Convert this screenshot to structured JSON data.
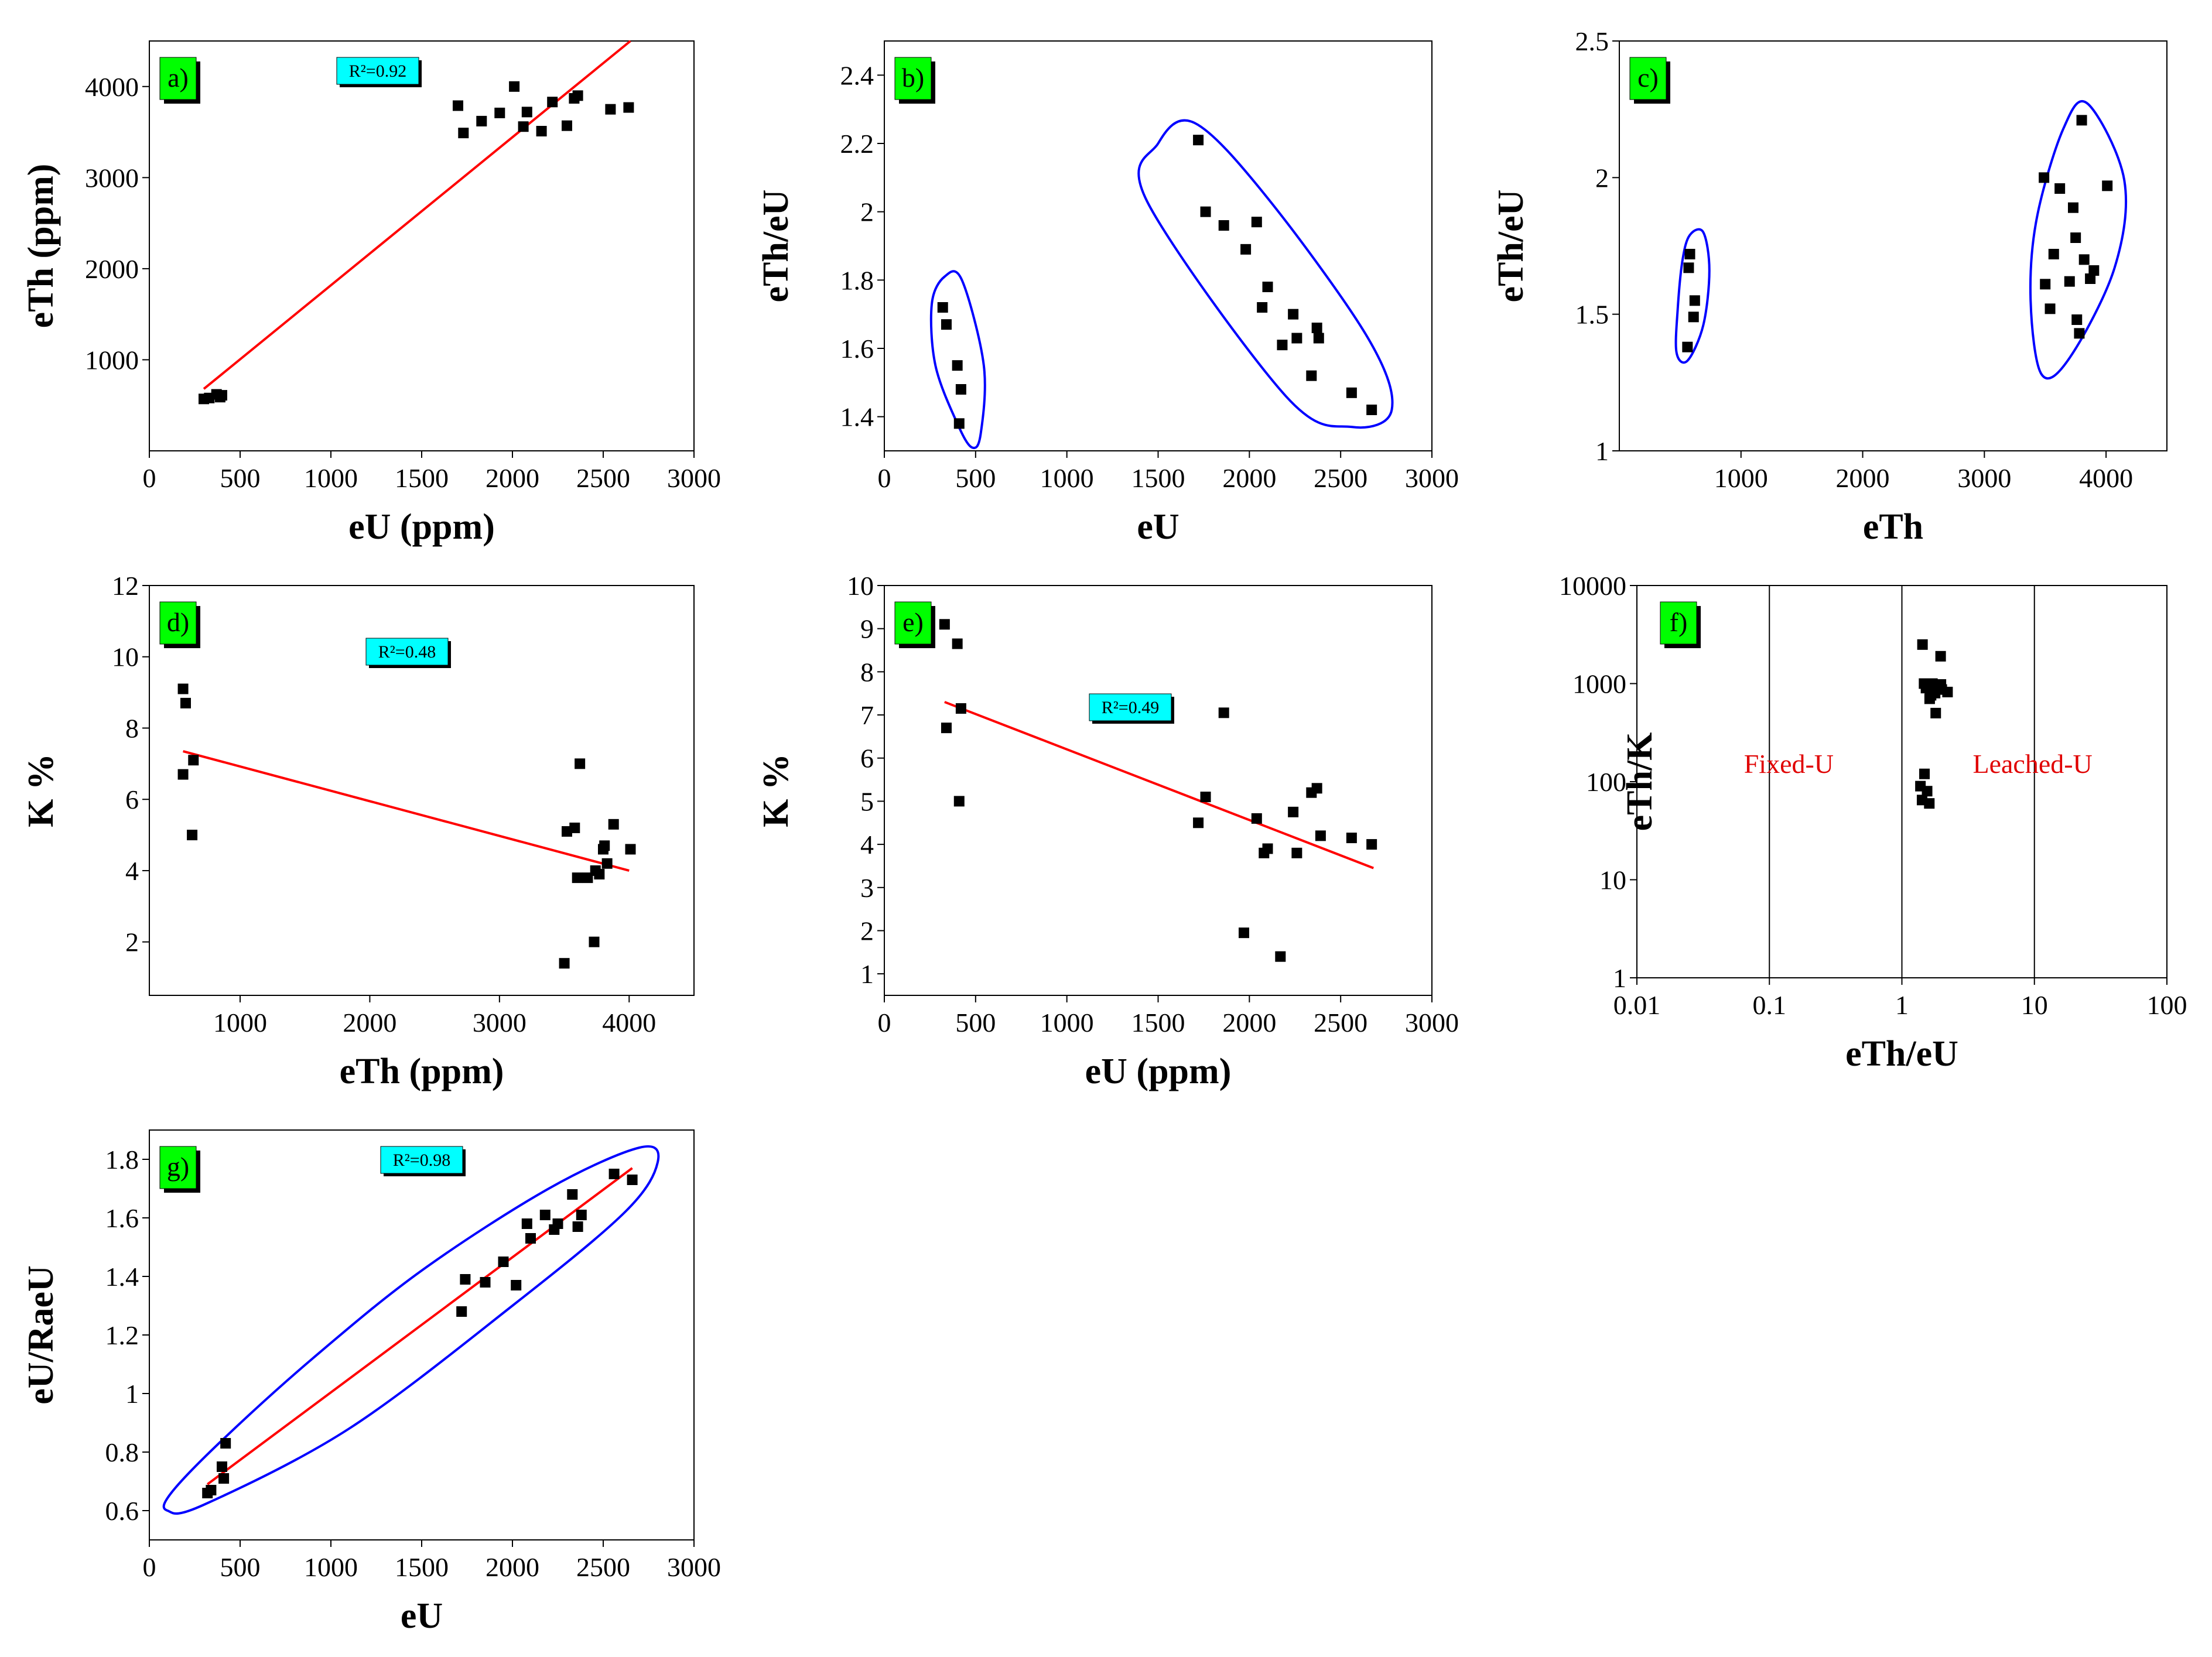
{
  "figure": {
    "colors": {
      "points": "#000000",
      "fit": "#ff0000",
      "ellipse": "#0000ff",
      "tag_bg": "#00ff00",
      "r2_bg": "#00ffff",
      "zone_text": "#e00000"
    }
  },
  "chart_data": [
    {
      "id": "a",
      "tag": "a)",
      "type": "scatter",
      "xlabel": "eU (ppm)",
      "ylabel": "eTh (ppm)",
      "xlim": [
        0,
        3000
      ],
      "ylim": [
        0,
        4500
      ],
      "xticks": [
        0,
        500,
        1000,
        1500,
        2000,
        2500,
        3000
      ],
      "yticks": [
        1000,
        2000,
        3000,
        4000
      ],
      "r2": "R²=0.92",
      "points": [
        [
          300,
          570
        ],
        [
          330,
          580
        ],
        [
          370,
          620
        ],
        [
          390,
          590
        ],
        [
          400,
          610
        ],
        [
          1700,
          3790
        ],
        [
          1730,
          3490
        ],
        [
          1830,
          3620
        ],
        [
          1930,
          3710
        ],
        [
          2010,
          4000
        ],
        [
          2060,
          3560
        ],
        [
          2080,
          3720
        ],
        [
          2160,
          3510
        ],
        [
          2220,
          3830
        ],
        [
          2300,
          3570
        ],
        [
          2340,
          3870
        ],
        [
          2360,
          3900
        ],
        [
          2540,
          3750
        ],
        [
          2640,
          3770
        ]
      ],
      "fit": [
        [
          300,
          680
        ],
        [
          2650,
          4500
        ]
      ],
      "ellipses": []
    },
    {
      "id": "b",
      "tag": "b)",
      "type": "scatter",
      "xlabel": "eU",
      "ylabel": "eTh/eU",
      "xlim": [
        0,
        3000
      ],
      "ylim": [
        1.3,
        2.5
      ],
      "xticks": [
        0,
        500,
        1000,
        1500,
        2000,
        2500,
        3000
      ],
      "yticks": [
        1.4,
        1.6,
        1.8,
        2.0,
        2.2,
        2.4
      ],
      "points": [
        [
          320,
          1.72
        ],
        [
          340,
          1.67
        ],
        [
          400,
          1.55
        ],
        [
          420,
          1.48
        ],
        [
          410,
          1.38
        ],
        [
          1720,
          2.21
        ],
        [
          1760,
          2.0
        ],
        [
          1860,
          1.96
        ],
        [
          1980,
          1.89
        ],
        [
          2040,
          1.97
        ],
        [
          2070,
          1.72
        ],
        [
          2100,
          1.78
        ],
        [
          2180,
          1.61
        ],
        [
          2240,
          1.7
        ],
        [
          2260,
          1.63
        ],
        [
          2340,
          1.52
        ],
        [
          2370,
          1.66
        ],
        [
          2380,
          1.63
        ],
        [
          2560,
          1.47
        ],
        [
          2670,
          1.42
        ]
      ],
      "fit": [],
      "ellipses": [
        {
          "points": [
            [
              260,
              1.73
            ],
            [
              330,
              1.81
            ],
            [
              425,
              1.8
            ],
            [
              545,
              1.55
            ],
            [
              528,
              1.35
            ],
            [
              480,
              1.31
            ],
            [
              400,
              1.38
            ],
            [
              280,
              1.55
            ]
          ]
        },
        {
          "points": [
            [
              1440,
              2.03
            ],
            [
              1500,
              2.2
            ],
            [
              1700,
              2.26
            ],
            [
              2100,
              2.04
            ],
            [
              2650,
              1.63
            ],
            [
              2780,
              1.42
            ],
            [
              2560,
              1.37
            ],
            [
              2200,
              1.46
            ]
          ]
        }
      ]
    },
    {
      "id": "c",
      "tag": "c)",
      "type": "scatter",
      "xlabel": "eTh",
      "ylabel": "eTh/eU",
      "xlim": [
        0,
        4500
      ],
      "ylim": [
        1.0,
        2.5
      ],
      "xticks": [
        1000,
        2000,
        3000,
        4000
      ],
      "yticks": [
        1.0,
        1.5,
        2.0,
        2.5
      ],
      "points": [
        [
          580,
          1.72
        ],
        [
          570,
          1.67
        ],
        [
          620,
          1.55
        ],
        [
          610,
          1.49
        ],
        [
          560,
          1.38
        ],
        [
          3490,
          2.0
        ],
        [
          3500,
          1.61
        ],
        [
          3540,
          1.52
        ],
        [
          3570,
          1.72
        ],
        [
          3620,
          1.96
        ],
        [
          3700,
          1.62
        ],
        [
          3730,
          1.89
        ],
        [
          3750,
          1.78
        ],
        [
          3760,
          1.48
        ],
        [
          3780,
          1.43
        ],
        [
          3800,
          2.21
        ],
        [
          3820,
          1.7
        ],
        [
          3870,
          1.63
        ],
        [
          3900,
          1.66
        ],
        [
          4010,
          1.97
        ]
      ],
      "fit": [],
      "ellipses": [
        {
          "points": [
            [
              520,
              1.7
            ],
            [
              580,
              1.79
            ],
            [
              690,
              1.8
            ],
            [
              740,
              1.66
            ],
            [
              690,
              1.46
            ],
            [
              560,
              1.33
            ],
            [
              470,
              1.36
            ],
            [
              480,
              1.52
            ]
          ]
        },
        {
          "points": [
            [
              3430,
              1.85
            ],
            [
              3650,
              2.18
            ],
            [
              3850,
              2.27
            ],
            [
              4150,
              1.99
            ],
            [
              4070,
              1.67
            ],
            [
              3700,
              1.34
            ],
            [
              3470,
              1.28
            ],
            [
              3380,
              1.55
            ]
          ]
        }
      ]
    },
    {
      "id": "d",
      "tag": "d)",
      "type": "scatter",
      "xlabel": "eTh (ppm)",
      "ylabel": "K %",
      "xlim": [
        300,
        4500
      ],
      "ylim": [
        0.5,
        12
      ],
      "xticks": [
        1000,
        2000,
        3000,
        4000
      ],
      "yticks": [
        2,
        4,
        6,
        8,
        10,
        12
      ],
      "r2": "R²=0.48",
      "points": [
        [
          560,
          9.1
        ],
        [
          580,
          8.7
        ],
        [
          560,
          6.7
        ],
        [
          640,
          7.1
        ],
        [
          630,
          5.0
        ],
        [
          3500,
          1.4
        ],
        [
          3520,
          5.1
        ],
        [
          3580,
          5.2
        ],
        [
          3600,
          3.8
        ],
        [
          3620,
          7.0
        ],
        [
          3680,
          3.8
        ],
        [
          3730,
          2.0
        ],
        [
          3740,
          4.0
        ],
        [
          3770,
          3.9
        ],
        [
          3800,
          4.6
        ],
        [
          3810,
          4.7
        ],
        [
          3830,
          4.2
        ],
        [
          3880,
          5.3
        ],
        [
          4010,
          4.6
        ]
      ],
      "fit": [
        [
          560,
          7.35
        ],
        [
          4000,
          4.0
        ]
      ],
      "ellipses": []
    },
    {
      "id": "e",
      "tag": "e)",
      "type": "scatter",
      "xlabel": "eU (ppm)",
      "ylabel": "K %",
      "xlim": [
        0,
        3000
      ],
      "ylim": [
        0.5,
        10
      ],
      "xticks": [
        0,
        500,
        1000,
        1500,
        2000,
        2500,
        3000
      ],
      "yticks": [
        1,
        2,
        3,
        4,
        5,
        6,
        7,
        8,
        9,
        10
      ],
      "r2": "R²=0.49",
      "points": [
        [
          330,
          9.1
        ],
        [
          340,
          6.7
        ],
        [
          400,
          8.65
        ],
        [
          410,
          5.0
        ],
        [
          420,
          7.15
        ],
        [
          1720,
          4.5
        ],
        [
          1760,
          5.1
        ],
        [
          1860,
          7.05
        ],
        [
          1970,
          1.95
        ],
        [
          2040,
          4.6
        ],
        [
          2080,
          3.8
        ],
        [
          2100,
          3.9
        ],
        [
          2170,
          1.4
        ],
        [
          2240,
          4.75
        ],
        [
          2260,
          3.8
        ],
        [
          2340,
          5.2
        ],
        [
          2370,
          5.3
        ],
        [
          2390,
          4.2
        ],
        [
          2560,
          4.15
        ],
        [
          2670,
          4.0
        ]
      ],
      "fit": [
        [
          330,
          7.3
        ],
        [
          2680,
          3.45
        ]
      ],
      "ellipses": []
    },
    {
      "id": "f",
      "tag": "f)",
      "type": "scatter",
      "xscale": "log",
      "yscale": "log",
      "xlabel": "eTh/eU",
      "ylabel": "eTh/K",
      "xlim": [
        0.01,
        100
      ],
      "ylim": [
        1,
        10000
      ],
      "xticks": [
        0.01,
        0.1,
        1,
        10,
        100
      ],
      "xtick_labels": [
        "0.01",
        "0.1",
        "1",
        "10",
        "100"
      ],
      "yticks": [
        1,
        10,
        100,
        1000,
        10000
      ],
      "ytick_labels": [
        "1",
        "10",
        "100",
        "1000",
        "10000"
      ],
      "vlines": [
        0.1,
        1,
        10
      ],
      "zones": [
        "Fixed-U",
        "Leached-U"
      ],
      "points": [
        [
          1.38,
          90
        ],
        [
          1.42,
          65
        ],
        [
          1.48,
          120
        ],
        [
          1.55,
          80
        ],
        [
          1.61,
          60
        ],
        [
          1.63,
          850
        ],
        [
          1.66,
          760
        ],
        [
          1.7,
          1000
        ],
        [
          1.72,
          950
        ],
        [
          1.78,
          800
        ],
        [
          1.89,
          900
        ],
        [
          1.96,
          1900
        ],
        [
          1.97,
          980
        ],
        [
          2.0,
          870
        ],
        [
          2.21,
          820
        ],
        [
          1.52,
          900
        ],
        [
          1.47,
          1000
        ],
        [
          1.43,
          2500
        ],
        [
          1.62,
          700
        ],
        [
          1.8,
          500
        ]
      ],
      "fit": [],
      "ellipses": []
    },
    {
      "id": "g",
      "tag": "g)",
      "type": "scatter",
      "xlabel": "eU",
      "ylabel": "eU/RaeU",
      "xlim": [
        0,
        3000
      ],
      "ylim": [
        0.5,
        1.9
      ],
      "xticks": [
        0,
        500,
        1000,
        1500,
        2000,
        2500,
        3000
      ],
      "yticks": [
        0.6,
        0.8,
        1.0,
        1.2,
        1.4,
        1.6,
        1.8
      ],
      "r2": "R²=0.98",
      "points": [
        [
          320,
          0.66
        ],
        [
          340,
          0.67
        ],
        [
          400,
          0.75
        ],
        [
          410,
          0.71
        ],
        [
          420,
          0.83
        ],
        [
          1720,
          1.28
        ],
        [
          1740,
          1.39
        ],
        [
          1850,
          1.38
        ],
        [
          1950,
          1.45
        ],
        [
          2020,
          1.37
        ],
        [
          2080,
          1.58
        ],
        [
          2100,
          1.53
        ],
        [
          2180,
          1.61
        ],
        [
          2230,
          1.56
        ],
        [
          2250,
          1.58
        ],
        [
          2330,
          1.68
        ],
        [
          2360,
          1.57
        ],
        [
          2380,
          1.61
        ],
        [
          2560,
          1.75
        ],
        [
          2660,
          1.73
        ]
      ],
      "fit": [
        [
          320,
          0.69
        ],
        [
          2660,
          1.77
        ]
      ],
      "ellipses": [
        {
          "points": [
            [
              100,
              0.6
            ],
            [
              120,
              0.66
            ],
            [
              400,
              0.84
            ],
            [
              900,
              1.12
            ],
            [
              1500,
              1.42
            ],
            [
              2200,
              1.7
            ],
            [
              2700,
              1.84
            ],
            [
              2800,
              1.79
            ],
            [
              2620,
              1.62
            ],
            [
              2000,
              1.3
            ],
            [
              1100,
              0.88
            ],
            [
              300,
              0.62
            ]
          ]
        }
      ]
    }
  ]
}
